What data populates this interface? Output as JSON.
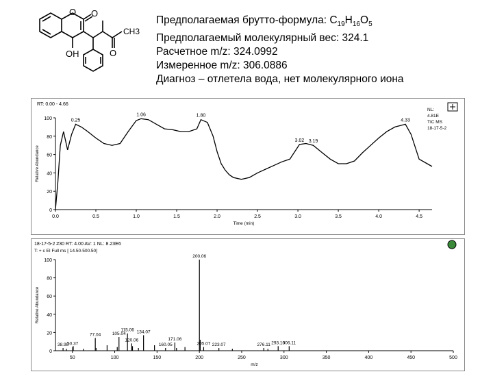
{
  "header": {
    "formula_prefix": "Предполагаемая брутто-формула: ",
    "formula_C": "C",
    "formula_C_n": "19",
    "formula_H": "H",
    "formula_H_n": "16",
    "formula_O": "O",
    "formula_O_n": "5",
    "mw_line": "Предполагаемый молекулярный вес: 324.1",
    "calc_line": "Расчетное m/z: 324.0992",
    "meas_line": "Измеренное m/z: 306.0886",
    "diag_line": "Диагноз – отлетела вода, нет молекулярного иона"
  },
  "molecule": {
    "labels": {
      "O_ring": "O",
      "O_carbonyl": "O",
      "CH3": "CH3",
      "OH": "OH",
      "O_ketone": "O"
    }
  },
  "chart_data": [
    {
      "type": "line",
      "header_line": "RT: 0.00 - 4.66",
      "side_labels": [
        "NL:",
        "4.81E",
        "TIC MS",
        "18-17-5-2"
      ],
      "xlabel": "Time (min)",
      "ylabel": "Relative Abundance",
      "xlim": [
        0,
        4.66
      ],
      "ylim": [
        0,
        100
      ],
      "xticks": [
        "0.0",
        "0.5",
        "1.0",
        "1.5",
        "2.0",
        "2.5",
        "3.0",
        "3.5",
        "4.0",
        "4.5"
      ],
      "yticks": [
        "0",
        "20",
        "40",
        "60",
        "80",
        "100"
      ],
      "x": [
        0.0,
        0.03,
        0.06,
        0.1,
        0.15,
        0.2,
        0.25,
        0.32,
        0.4,
        0.5,
        0.6,
        0.7,
        0.8,
        0.9,
        1.0,
        1.06,
        1.15,
        1.25,
        1.35,
        1.45,
        1.55,
        1.65,
        1.75,
        1.8,
        1.88,
        1.95,
        2.0,
        2.05,
        2.1,
        2.15,
        2.2,
        2.3,
        2.4,
        2.5,
        2.6,
        2.7,
        2.8,
        2.9,
        3.02,
        3.1,
        3.19,
        3.3,
        3.4,
        3.5,
        3.6,
        3.7,
        3.8,
        3.9,
        4.0,
        4.1,
        4.2,
        4.33,
        4.4,
        4.5,
        4.6,
        4.66
      ],
      "y": [
        0,
        30,
        70,
        85,
        65,
        82,
        93,
        90,
        85,
        78,
        72,
        70,
        72,
        85,
        97,
        99,
        98,
        93,
        88,
        87,
        85,
        85,
        88,
        98,
        95,
        80,
        63,
        50,
        43,
        38,
        35,
        33,
        35,
        40,
        44,
        48,
        52,
        55,
        71,
        72,
        70,
        62,
        55,
        50,
        50,
        53,
        62,
        70,
        78,
        85,
        90,
        93,
        82,
        55,
        50,
        47
      ],
      "peak_labels": [
        {
          "x": 0.25,
          "y": 93,
          "text": "0.25"
        },
        {
          "x": 1.06,
          "y": 99,
          "text": "1.06"
        },
        {
          "x": 1.8,
          "y": 98,
          "text": "1.80"
        },
        {
          "x": 3.02,
          "y": 71,
          "text": "3.02"
        },
        {
          "x": 3.19,
          "y": 70,
          "text": "3.19"
        },
        {
          "x": 4.33,
          "y": 93,
          "text": "4.33"
        }
      ]
    },
    {
      "type": "bar",
      "header_line": "18-17-5-2 #30  RT: 4.00  AV: 1  NL: 8.23E6",
      "header_line2": "T: + c EI Full ms [ 14.50-500.50]",
      "xlabel": "m/z",
      "ylabel": "Relative Abundance",
      "xlim": [
        30,
        500
      ],
      "ylim": [
        0,
        100
      ],
      "xticks": [
        "50",
        "100",
        "150",
        "200",
        "250",
        "300",
        "350",
        "400",
        "450",
        "500"
      ],
      "yticks": [
        "0",
        "20",
        "40",
        "60",
        "80",
        "100"
      ],
      "x": [
        38.98,
        43.0,
        50.37,
        51.0,
        63.0,
        77.04,
        78.0,
        91.0,
        103.0,
        105.04,
        115.06,
        120.06,
        121.0,
        128.0,
        134.07,
        147.0,
        160.05,
        171.06,
        173.0,
        183.0,
        200.06,
        201.0,
        205.07,
        223.07,
        239.0,
        276.11,
        281.0,
        293.1,
        306.11
      ],
      "values": [
        3,
        2,
        4,
        5,
        2,
        14,
        3,
        6,
        4,
        15,
        19,
        8,
        5,
        3,
        17,
        6,
        3,
        9,
        3,
        4,
        100,
        12,
        4,
        3,
        2,
        3,
        2,
        5,
        5
      ],
      "peak_labels": [
        {
          "x": 38.98,
          "y": 3,
          "text": "38.98"
        },
        {
          "x": 50.37,
          "y": 4,
          "text": "50.37"
        },
        {
          "x": 77.04,
          "y": 14,
          "text": "77.04"
        },
        {
          "x": 105.04,
          "y": 15,
          "text": "105.04"
        },
        {
          "x": 115.06,
          "y": 19,
          "text": "115.06"
        },
        {
          "x": 120.06,
          "y": 8,
          "text": "120.06"
        },
        {
          "x": 134.07,
          "y": 17,
          "text": "134.07"
        },
        {
          "x": 160.05,
          "y": 3,
          "text": "160.05"
        },
        {
          "x": 171.06,
          "y": 9,
          "text": "171.06"
        },
        {
          "x": 200.06,
          "y": 100,
          "text": "200.06"
        },
        {
          "x": 205.07,
          "y": 4,
          "text": "205.07"
        },
        {
          "x": 223.07,
          "y": 3,
          "text": "223.07"
        },
        {
          "x": 276.11,
          "y": 3,
          "text": "276.11"
        },
        {
          "x": 293.1,
          "y": 5,
          "text": "293.10"
        },
        {
          "x": 306.11,
          "y": 5,
          "text": "306.11"
        }
      ]
    }
  ]
}
